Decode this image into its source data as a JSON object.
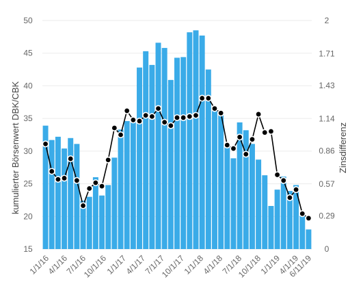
{
  "chart_data": {
    "type": "bar+line",
    "left_axis": {
      "label": "kumulierter Börsenwert DBK/CBK",
      "ylim": [
        15,
        50
      ],
      "ticks": [
        "15",
        "20",
        "25",
        "30",
        "35",
        "40",
        "45",
        "50"
      ]
    },
    "right_axis": {
      "label": "Zinsdifferenz",
      "ylim": [
        0,
        2
      ],
      "ticks": [
        "0",
        "0.29",
        "0.57",
        "0.86",
        "1.14",
        "1.43",
        "1.71",
        "2"
      ]
    },
    "x_tick_labels": [
      "1/1/16",
      "4/1/16",
      "7/1/16",
      "10/1/16",
      "1/1/17",
      "4/1/17",
      "7/1/17",
      "10/1/17",
      "1/1/18",
      "4/1/18",
      "7/1/18",
      "10/1/18",
      "1/1/19",
      "4/1/19",
      "6/11/19"
    ],
    "colors": {
      "bars": "#3aabe8",
      "line": "#000000",
      "marker_fill": "#000000",
      "marker_outline": "#ffffff",
      "grid": "#ebebeb"
    },
    "grid": true,
    "series": [
      {
        "axis": "left",
        "kind": "bar",
        "values": [
          33.9,
          31.7,
          32.2,
          30.4,
          32.0,
          31.1,
          22.4,
          23.0,
          26.0,
          23.2,
          24.8,
          29.0,
          33.3,
          34.6,
          34.8,
          42.8,
          45.3,
          43.2,
          46.6,
          45.8,
          40.9,
          44.3,
          44.4,
          48.2,
          48.5,
          47.7,
          42.5,
          36.6,
          35.7,
          31.2,
          28.9,
          34.4,
          33.2,
          31.1,
          28.7,
          26.3,
          21.6,
          24.1,
          26.1,
          23.9,
          24.8,
          20.4,
          18.0
        ]
      },
      {
        "axis": "right",
        "kind": "line",
        "values": [
          0.92,
          0.68,
          0.61,
          0.62,
          0.79,
          0.6,
          0.38,
          0.53,
          0.58,
          0.55,
          0.78,
          1.06,
          1.0,
          1.21,
          1.13,
          1.12,
          1.17,
          1.16,
          1.23,
          1.11,
          1.08,
          1.15,
          1.15,
          1.16,
          1.17,
          1.32,
          1.32,
          1.23,
          1.19,
          0.91,
          0.88,
          0.98,
          0.83,
          0.96,
          1.18,
          1.02,
          1.03,
          0.65,
          0.6,
          0.45,
          0.52,
          0.31,
          0.27
        ]
      }
    ]
  }
}
